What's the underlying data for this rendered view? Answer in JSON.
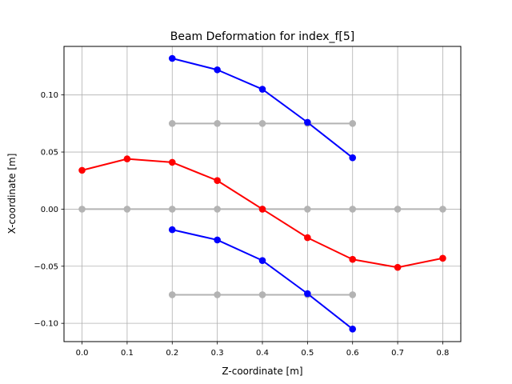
{
  "chart_data": {
    "type": "line",
    "title": "Beam Deformation for index_f[5]",
    "xlabel": "Z-coordinate [m]",
    "ylabel": "X-coordinate [m]",
    "xlim": [
      -0.04,
      0.84
    ],
    "ylim": [
      -0.116,
      0.1425
    ],
    "xticks": [
      0.0,
      0.1,
      0.2,
      0.3,
      0.4,
      0.5,
      0.6,
      0.7,
      0.8
    ],
    "xtick_labels": [
      "0.0",
      "0.1",
      "0.2",
      "0.3",
      "0.4",
      "0.5",
      "0.6",
      "0.7",
      "0.8"
    ],
    "yticks": [
      -0.1,
      -0.05,
      0.0,
      0.05,
      0.1
    ],
    "ytick_labels": [
      "−0.10",
      "−0.05",
      "0.00",
      "0.05",
      "0.10"
    ],
    "grid": true,
    "legend": false,
    "series": [
      {
        "color": "#b3b3b3",
        "role": "undeformed",
        "x": [
          0.0,
          0.1,
          0.2,
          0.3,
          0.4,
          0.5,
          0.6,
          0.7,
          0.8
        ],
        "y": [
          0.0,
          0.0,
          0.0,
          0.0,
          0.0,
          0.0,
          0.0,
          0.0,
          0.0
        ]
      },
      {
        "color": "#b3b3b3",
        "role": "undeformed",
        "x": [
          0.2,
          0.3,
          0.4,
          0.5,
          0.6
        ],
        "y": [
          0.075,
          0.075,
          0.075,
          0.075,
          0.075
        ]
      },
      {
        "color": "#b3b3b3",
        "role": "undeformed",
        "x": [
          0.2,
          0.3,
          0.4,
          0.5,
          0.6
        ],
        "y": [
          -0.075,
          -0.075,
          -0.075,
          -0.075,
          -0.075
        ]
      },
      {
        "color": "#0000ff",
        "role": "deformed",
        "x": [
          0.2,
          0.3,
          0.4,
          0.5,
          0.6
        ],
        "y": [
          0.132,
          0.122,
          0.105,
          0.076,
          0.045
        ]
      },
      {
        "color": "#0000ff",
        "role": "deformed",
        "x": [
          0.2,
          0.3,
          0.4,
          0.5,
          0.6
        ],
        "y": [
          -0.018,
          -0.027,
          -0.045,
          -0.074,
          -0.105
        ]
      },
      {
        "color": "#ff0000",
        "role": "deformed",
        "x": [
          0.0,
          0.1,
          0.2,
          0.3,
          0.4,
          0.5,
          0.6,
          0.7,
          0.8
        ],
        "y": [
          0.034,
          0.044,
          0.041,
          0.025,
          0.0,
          -0.025,
          -0.044,
          -0.051,
          -0.043
        ]
      }
    ]
  }
}
